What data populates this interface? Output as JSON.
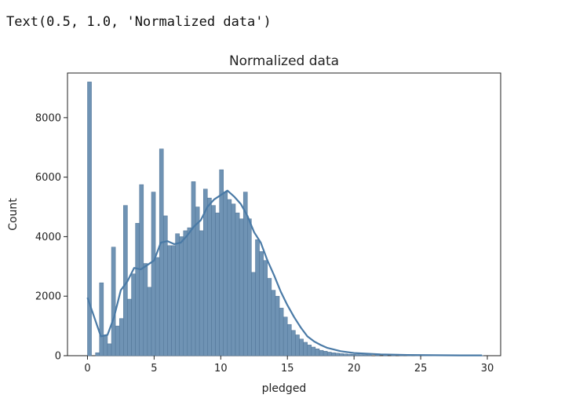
{
  "output_text": "Text(0.5, 1.0, 'Normalized data')",
  "colors": {
    "bar_fill": "#6f93b4",
    "bar_edge": "#4f7396",
    "kde_line": "#4a7aa6",
    "axes": "#222222"
  },
  "chart_data": {
    "type": "bar",
    "title": "Normalized data",
    "xlabel": "pledged",
    "ylabel": "Count",
    "xlim": [
      -1.5,
      31
    ],
    "ylim": [
      0,
      9500
    ],
    "xticks": [
      0,
      5,
      10,
      15,
      20,
      25,
      30
    ],
    "yticks": [
      0,
      2000,
      4000,
      6000,
      8000
    ],
    "grid": false,
    "legend": "none",
    "bin_width": 0.3,
    "bins": [
      [
        0.0,
        9200
      ],
      [
        0.3,
        0
      ],
      [
        0.6,
        100
      ],
      [
        0.9,
        2450
      ],
      [
        1.2,
        700
      ],
      [
        1.5,
        400
      ],
      [
        1.8,
        3650
      ],
      [
        2.1,
        1000
      ],
      [
        2.4,
        1250
      ],
      [
        2.7,
        5050
      ],
      [
        3.0,
        1900
      ],
      [
        3.3,
        2750
      ],
      [
        3.6,
        4450
      ],
      [
        3.9,
        5750
      ],
      [
        4.2,
        3100
      ],
      [
        4.5,
        2300
      ],
      [
        4.8,
        5500
      ],
      [
        5.1,
        3300
      ],
      [
        5.4,
        6950
      ],
      [
        5.7,
        4700
      ],
      [
        6.0,
        3700
      ],
      [
        6.3,
        3700
      ],
      [
        6.6,
        4100
      ],
      [
        6.9,
        4000
      ],
      [
        7.2,
        4200
      ],
      [
        7.5,
        4300
      ],
      [
        7.8,
        5850
      ],
      [
        8.1,
        5000
      ],
      [
        8.4,
        4200
      ],
      [
        8.7,
        5600
      ],
      [
        9.0,
        5300
      ],
      [
        9.3,
        5050
      ],
      [
        9.6,
        4800
      ],
      [
        9.9,
        6250
      ],
      [
        10.2,
        5500
      ],
      [
        10.5,
        5250
      ],
      [
        10.8,
        5100
      ],
      [
        11.1,
        4800
      ],
      [
        11.4,
        4600
      ],
      [
        11.7,
        5500
      ],
      [
        12.0,
        4600
      ],
      [
        12.3,
        2800
      ],
      [
        12.6,
        3900
      ],
      [
        12.9,
        3500
      ],
      [
        13.2,
        3200
      ],
      [
        13.5,
        2600
      ],
      [
        13.8,
        2200
      ],
      [
        14.1,
        2000
      ],
      [
        14.4,
        1600
      ],
      [
        14.7,
        1300
      ],
      [
        15.0,
        1050
      ],
      [
        15.3,
        850
      ],
      [
        15.6,
        700
      ],
      [
        15.9,
        560
      ],
      [
        16.2,
        450
      ],
      [
        16.5,
        360
      ],
      [
        16.8,
        290
      ],
      [
        17.1,
        230
      ],
      [
        17.4,
        180
      ],
      [
        17.7,
        150
      ],
      [
        18.0,
        120
      ],
      [
        18.3,
        100
      ],
      [
        18.6,
        85
      ],
      [
        18.9,
        70
      ],
      [
        19.2,
        60
      ],
      [
        19.5,
        50
      ],
      [
        19.8,
        45
      ],
      [
        20.1,
        40
      ],
      [
        20.4,
        35
      ],
      [
        20.7,
        30
      ],
      [
        21.0,
        28
      ],
      [
        21.6,
        25
      ],
      [
        22.2,
        22
      ],
      [
        22.8,
        20
      ],
      [
        23.4,
        18
      ],
      [
        24.0,
        16
      ],
      [
        24.6,
        15
      ],
      [
        25.2,
        14
      ],
      [
        25.8,
        12
      ],
      [
        26.4,
        11
      ],
      [
        27.0,
        10
      ],
      [
        27.6,
        9
      ],
      [
        28.2,
        8
      ],
      [
        28.8,
        7
      ],
      [
        29.4,
        6
      ]
    ],
    "kde": {
      "x": [
        0,
        0.5,
        1,
        1.5,
        2,
        2.5,
        3,
        3.5,
        4,
        4.5,
        5,
        5.5,
        6,
        6.5,
        7,
        7.5,
        8,
        8.5,
        9,
        9.5,
        10,
        10.5,
        11,
        11.5,
        12,
        12.5,
        13,
        13.5,
        14,
        14.5,
        15,
        15.5,
        16,
        16.5,
        17,
        17.5,
        18,
        19,
        20,
        22,
        24,
        26,
        28,
        29.6
      ],
      "y": [
        1950,
        1300,
        650,
        700,
        1300,
        2200,
        2500,
        2950,
        2900,
        3050,
        3200,
        3800,
        3850,
        3750,
        3800,
        4050,
        4350,
        4550,
        5000,
        5250,
        5400,
        5550,
        5350,
        5100,
        4700,
        4150,
        3800,
        3200,
        2700,
        2150,
        1700,
        1300,
        950,
        650,
        480,
        360,
        260,
        150,
        90,
        45,
        25,
        15,
        10,
        10
      ]
    }
  }
}
